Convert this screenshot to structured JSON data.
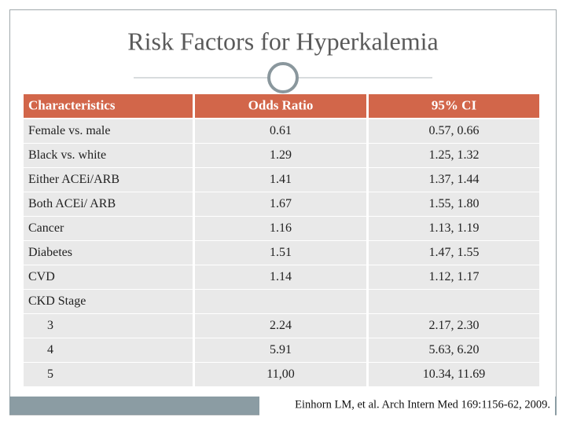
{
  "header": {
    "title": "Risk Factors for Hyperkalemia"
  },
  "table": {
    "columns": [
      "Characteristics",
      "Odds Ratio",
      "95% CI"
    ],
    "rows": [
      [
        "Female vs. male",
        "0.61",
        "0.57, 0.66"
      ],
      [
        "Black vs. white",
        "1.29",
        "1.25, 1.32"
      ],
      [
        "Either ACEi/ARB",
        "1.41",
        "1.37, 1.44"
      ],
      [
        "Both ACEi/ ARB",
        "1.67",
        "1.55, 1.80"
      ],
      [
        "Cancer",
        "1.16",
        "1.13, 1.19"
      ],
      [
        "Diabetes",
        "1.51",
        "1.47, 1.55"
      ],
      [
        "CVD",
        "1.14",
        "1.12, 1.17"
      ]
    ],
    "group": {
      "label": "CKD Stage",
      "rows": [
        [
          "3",
          "2.24",
          "2.17, 2.30"
        ],
        [
          "4",
          "5.91",
          "5.63, 6.20"
        ],
        [
          "5",
          "11,00",
          "10.34, 11.69"
        ]
      ]
    }
  },
  "footer": {
    "citation": "Einhorn LM, et al. Arch Intern Med 169:1156-62, 2009."
  }
}
